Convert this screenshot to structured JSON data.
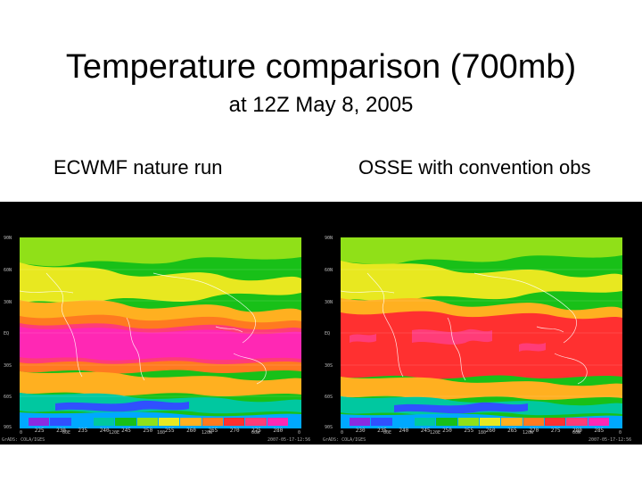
{
  "slide": {
    "title": "Temperature comparison (700mb)",
    "subtitle": "at 12Z May 8, 2005",
    "left_label": "ECWMF nature run",
    "right_label": "OSSE with convention obs"
  },
  "panels": [
    {
      "name": "nature-run",
      "colorbar_ticks": [
        "225",
        "230",
        "235",
        "240",
        "245",
        "250",
        "255",
        "260",
        "265",
        "270",
        "275",
        "280"
      ],
      "footer_left": "GrADS: COLA/IGES",
      "footer_right": "2007-05-17-12:56"
    },
    {
      "name": "osse",
      "colorbar_ticks": [
        "230",
        "235",
        "240",
        "245",
        "250",
        "255",
        "260",
        "265",
        "270",
        "275",
        "280",
        "285"
      ],
      "footer_left": "GrADS: COLA/IGES",
      "footer_right": "2007-05-17-12:56"
    }
  ],
  "map_axes": {
    "lat_labels": [
      "90N",
      "60N",
      "30N",
      "EQ",
      "30S",
      "60S",
      "90S"
    ],
    "lon_labels": [
      "0",
      "60E",
      "120E",
      "180",
      "120W",
      "60W",
      "0"
    ]
  },
  "colors": {
    "colorbar": [
      "#8a2be2",
      "#3050ff",
      "#00a8ff",
      "#00c8a0",
      "#18c018",
      "#90e018",
      "#e8e820",
      "#ffb020",
      "#ff7a20",
      "#ff3030",
      "#ff3c78",
      "#ff28b4"
    ],
    "background_band": "#000000"
  }
}
